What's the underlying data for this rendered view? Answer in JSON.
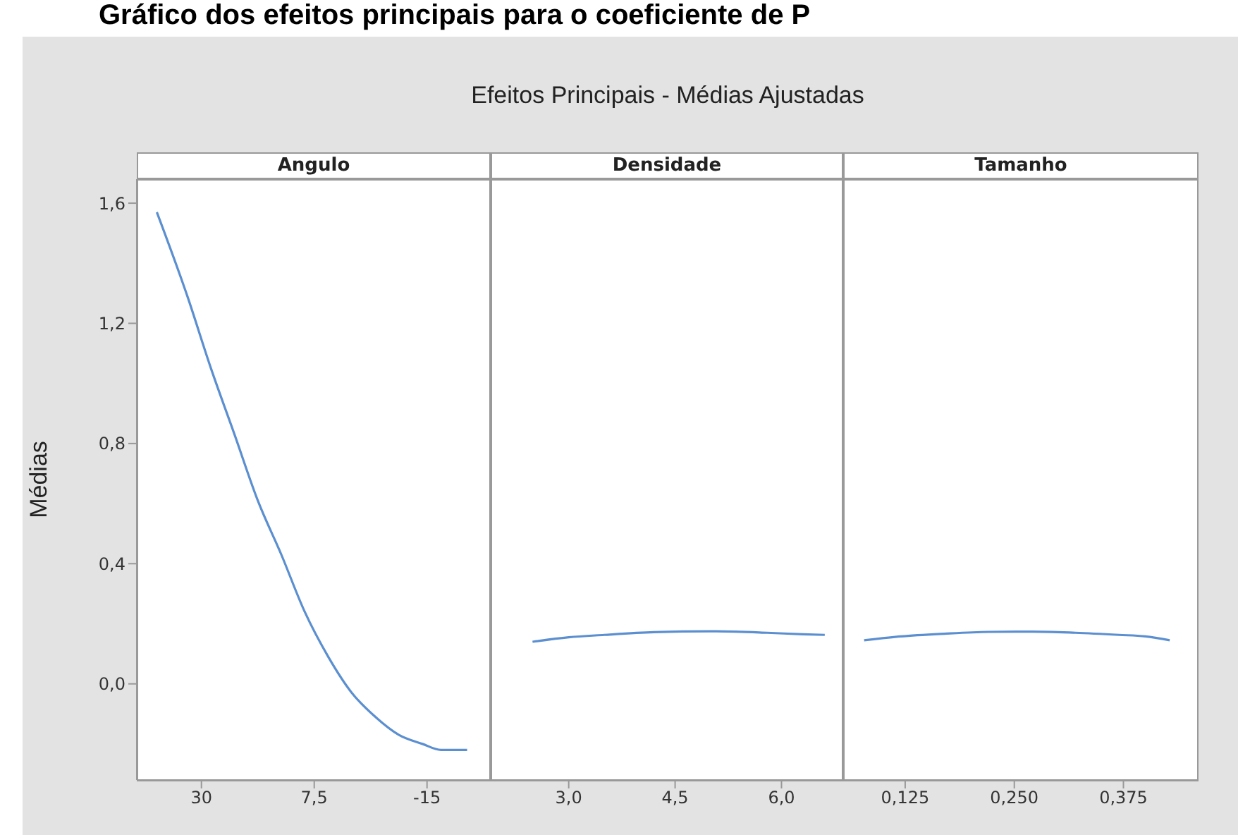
{
  "chart_data": [
    {
      "type": "line",
      "title": "Angulo",
      "ylabel": "Médias",
      "annotations": [
        "Gráfico dos efeitos principais para o coeficiente de P",
        "Efeitos Principais - Médias Ajustadas"
      ],
      "x": [
        38.9,
        32.8,
        28.1,
        23.4,
        18.75,
        14.06,
        9.4,
        4.7,
        0,
        -4.7,
        -9.4,
        -14.1,
        -17.8,
        -23
      ],
      "series": [
        {
          "color": "#5b8fd0",
          "values": [
            1.57,
            1.29,
            1.05,
            0.83,
            0.61,
            0.43,
            0.24,
            0.09,
            -0.03,
            -0.11,
            -0.17,
            -0.2,
            -0.22,
            -0.22
          ]
        }
      ],
      "xlim": [
        42.9,
        -27.7
      ],
      "xticks": [
        30,
        {
          "value": 7.5,
          "label": "7,5"
        },
        -15
      ],
      "ylim": [
        -0.32,
        1.68
      ],
      "yticks": [
        {
          "value": 0,
          "label": "0,0"
        },
        {
          "value": 0.4,
          "label": "0,4"
        },
        {
          "value": 0.8,
          "label": "0,8"
        },
        {
          "value": 1.2,
          "label": "1,2"
        },
        {
          "value": 1.6,
          "label": "1,6"
        }
      ]
    },
    {
      "type": "line",
      "title": "Densidade",
      "tick_labels": "x",
      "x": [
        2.49,
        3.0,
        3.5,
        4.2,
        5.0,
        5.8,
        6.3,
        6.61
      ],
      "series": [
        {
          "color": "#5b8fd0",
          "values": [
            0.14,
            0.155,
            0.163,
            0.172,
            0.175,
            0.17,
            0.165,
            0.163
          ]
        }
      ],
      "xlim": [
        1.9,
        6.87
      ],
      "xticks": [
        {
          "value": 3,
          "label": "3,0"
        },
        {
          "value": 4.5,
          "label": "4,5"
        },
        {
          "value": 6,
          "label": "6,0"
        }
      ],
      "ylim": [
        -0.32,
        1.68
      ]
    },
    {
      "type": "line",
      "title": "Tamanho",
      "tick_labels": "x",
      "x": [
        0.078,
        0.12,
        0.17,
        0.22,
        0.27,
        0.32,
        0.37,
        0.4,
        0.428
      ],
      "series": [
        {
          "color": "#5b8fd0",
          "values": [
            0.145,
            0.158,
            0.167,
            0.173,
            0.174,
            0.17,
            0.163,
            0.158,
            0.145
          ]
        }
      ],
      "xlim": [
        0.054,
        0.461
      ],
      "xticks": [
        {
          "value": 0.125,
          "label": "0,125"
        },
        {
          "value": 0.25,
          "label": "0,250"
        },
        {
          "value": 0.375,
          "label": "0,375"
        }
      ],
      "ylim": [
        -0.32,
        1.68
      ]
    }
  ]
}
